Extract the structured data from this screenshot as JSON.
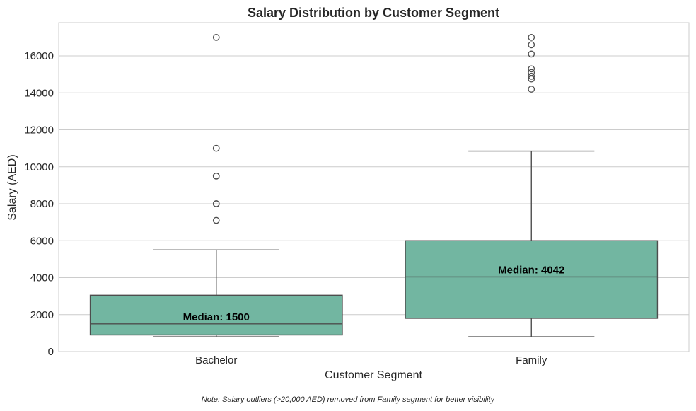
{
  "chart_data": {
    "type": "box",
    "title": "Salary Distribution by Customer Segment",
    "xlabel": "Customer Segment",
    "ylabel": "Salary (AED)",
    "ylim": [
      0,
      17800
    ],
    "yticks": [
      0,
      2000,
      4000,
      6000,
      8000,
      10000,
      12000,
      14000,
      16000
    ],
    "grid": "horizontal",
    "box_color": "#72b6a1",
    "line_color": "#4d4d4d",
    "categories": [
      "Bachelor",
      "Family"
    ],
    "series": [
      {
        "category": "Bachelor",
        "whisker_low": 800,
        "q1": 900,
        "median": 1500,
        "q3": 3050,
        "whisker_high": 5500,
        "outliers": [
          17000,
          11000,
          9500,
          9500,
          8000,
          8000,
          7100
        ],
        "median_label": "Median: 1500"
      },
      {
        "category": "Family",
        "whisker_low": 800,
        "q1": 1800,
        "median": 4042,
        "q3": 6000,
        "whisker_high": 10850,
        "outliers": [
          17000,
          16600,
          16100,
          15300,
          15100,
          14900,
          14750,
          14200
        ],
        "median_label": "Median: 4042"
      }
    ],
    "note": "Note: Salary outliers (>20,000 AED) removed from Family segment for better visibility"
  }
}
